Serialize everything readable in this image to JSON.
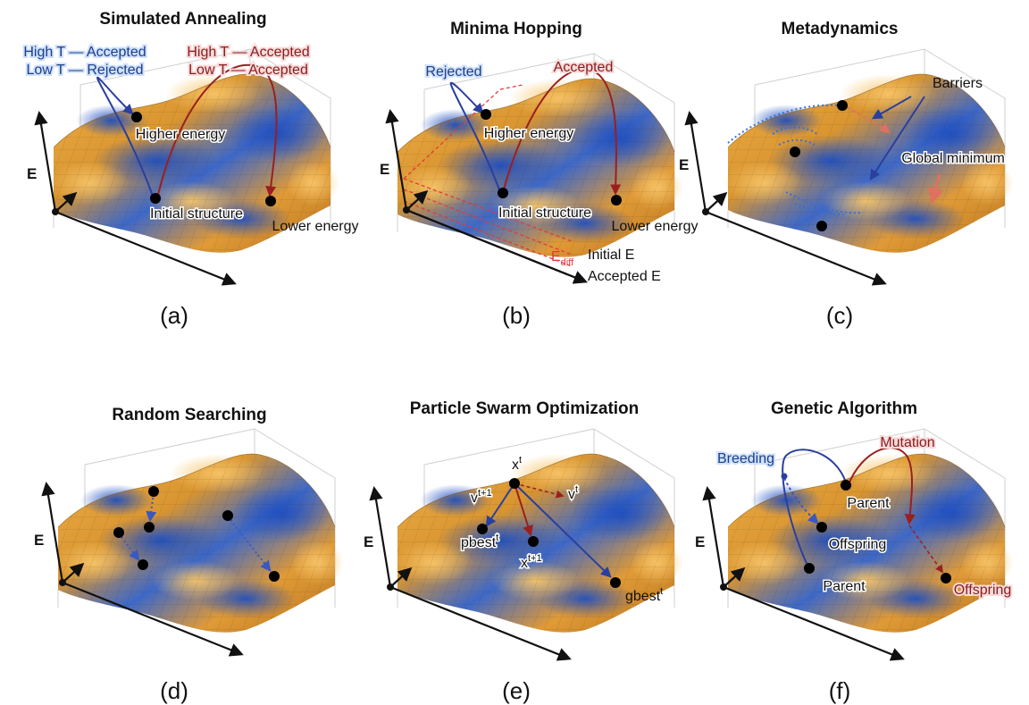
{
  "panels": [
    {
      "id": "a",
      "title": "Simulated Annealing",
      "tag": "(a)",
      "labels": {
        "high_t_accepted_blue": "High T — Accepted",
        "low_t_rejected": "Low T — Rejected",
        "high_t_accepted_red": "High T — Accepted",
        "low_t_accepted": "Low T — Accepted",
        "higher_energy": "Higher energy",
        "initial_structure": "Initial structure",
        "lower_energy": "Lower energy",
        "axis_e": "E"
      }
    },
    {
      "id": "b",
      "title": "Minima Hopping",
      "tag": "(b)",
      "labels": {
        "rejected": "Rejected",
        "accepted": "Accepted",
        "higher_energy": "Higher energy",
        "initial_structure": "Initial structure",
        "lower_energy": "Lower energy",
        "initial_e": "Initial E",
        "e_diff_main": "E",
        "e_diff_sub": "diff",
        "accepted_e": "Accepted E",
        "axis_e": "E"
      }
    },
    {
      "id": "c",
      "title": "Metadynamics",
      "tag": "(c)",
      "labels": {
        "barriers": "Barriers",
        "global_minimum": "Global minimum",
        "axis_e": "E"
      }
    },
    {
      "id": "d",
      "title": "Random Searching",
      "tag": "(d)",
      "labels": {
        "axis_e": "E"
      }
    },
    {
      "id": "e",
      "title": "Particle Swarm Optimization",
      "tag": "(e)",
      "labels": {
        "x_t_base": "x",
        "x_t_sup": "t",
        "v_t1_base": "v",
        "v_t1_sup": "t+1",
        "v_t_base": "v",
        "v_t_sup": "t",
        "pbest_base": "pbest",
        "pbest_sup": "t",
        "x_t1_base": "x",
        "x_t1_sup": "t+1",
        "gbest_base": "gbest",
        "gbest_sup": "t",
        "axis_e": "E"
      }
    },
    {
      "id": "f",
      "title": "Genetic Algorithm",
      "tag": "(f)",
      "labels": {
        "breeding": "Breeding",
        "mutation": "Mutation",
        "parent_top": "Parent",
        "offspring_mid": "Offspring",
        "parent_bottom": "Parent",
        "offspring_right": "Offspring",
        "axis_e": "E"
      }
    }
  ],
  "colors": {
    "surface_peak": "#e8a030",
    "surface_valley": "#2f5fc8",
    "arrow_blue": "#2a3f9e",
    "arrow_red": "#9a1f1f",
    "dashed_red": "#e03a3a",
    "dotted_blue": "#3a6fd0",
    "marker": "#000000"
  }
}
